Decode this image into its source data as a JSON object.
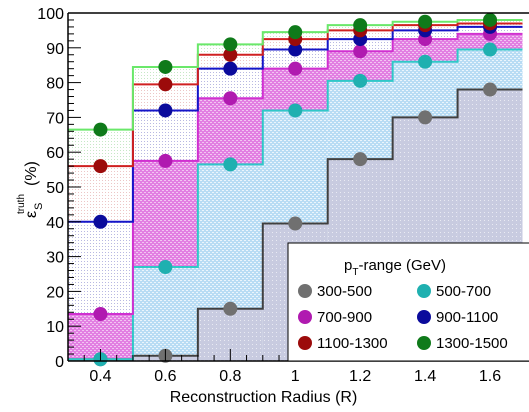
{
  "chart_data": {
    "type": "line",
    "chart_style": "step histogram with markers and shaded fills",
    "xlabel": "Reconstruction Radius (R)",
    "ylabel": {
      "main": "ε",
      "superscript": "truth",
      "subscript": "S",
      "unit": "(%)"
    },
    "xlim": [
      0.3,
      1.72
    ],
    "ylim": [
      0,
      100
    ],
    "xticks": [
      "0.4",
      "0.6",
      "0.8",
      "1",
      "1.2",
      "1.4",
      "1.6"
    ],
    "yticks": [
      "0",
      "10",
      "20",
      "30",
      "40",
      "50",
      "60",
      "70",
      "80",
      "90",
      "100"
    ],
    "legend": {
      "title_main": "p",
      "title_sub": "T",
      "title_rest": "-range (GeV)",
      "position": "bottom-right"
    },
    "x": [
      0.4,
      0.6,
      0.8,
      1.0,
      1.2,
      1.4,
      1.6
    ],
    "series": [
      {
        "name": "300-500",
        "marker_color": "#707070",
        "line_color": "#404040",
        "fill_color": "#c8cbe0",
        "values": [
          0.5,
          1.5,
          15,
          39.5,
          58,
          70,
          78
        ]
      },
      {
        "name": "500-700",
        "marker_color": "#1fb0b0",
        "line_color": "#30c8c8",
        "fill_color": "#bfe3f7",
        "values": [
          0.5,
          27,
          56.5,
          72,
          80.5,
          86,
          89.5
        ]
      },
      {
        "name": "700-900",
        "marker_color": "#b01ab0",
        "line_color": "#d030d0",
        "fill_color": "#e89ae8",
        "values": [
          13.5,
          57.5,
          75.5,
          84,
          89,
          92.5,
          94
        ]
      },
      {
        "name": "900-1100",
        "marker_color": "#0b0b9c",
        "line_color": "#1515c8",
        "fill_color": "#e4e4f2",
        "values": [
          40,
          72,
          84,
          89.5,
          92.5,
          95,
          96
        ]
      },
      {
        "name": "1100-1300",
        "marker_color": "#9c0b0b",
        "line_color": "#d02020",
        "fill_color": "#f8eaea",
        "values": [
          56,
          79.5,
          88,
          92.5,
          95,
          96.5,
          97
        ]
      },
      {
        "name": "1300-1500",
        "marker_color": "#0f7a1a",
        "line_color": "#6ae86a",
        "fill_color": "#eef8ee",
        "values": [
          66.5,
          84.5,
          91,
          94.5,
          96.5,
          97.5,
          98
        ]
      }
    ],
    "grid": false
  }
}
